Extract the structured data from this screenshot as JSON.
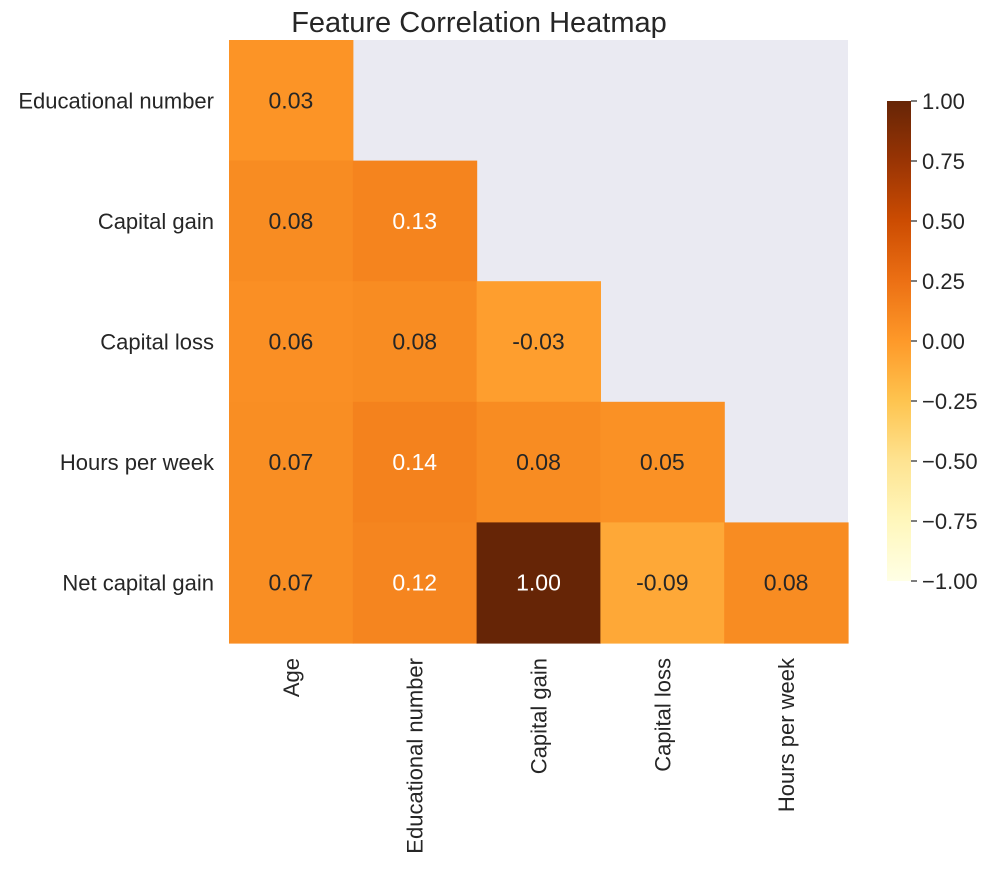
{
  "chart_data": {
    "type": "heatmap",
    "title": "Feature Correlation Heatmap",
    "rows": [
      "Educational number",
      "Capital gain",
      "Capital loss",
      "Hours per week",
      "Net capital gain"
    ],
    "columns": [
      "Age",
      "Educational number",
      "Capital gain",
      "Capital loss",
      "Hours per week"
    ],
    "values": [
      [
        0.03,
        null,
        null,
        null,
        null
      ],
      [
        0.08,
        0.13,
        null,
        null,
        null
      ],
      [
        0.06,
        0.08,
        -0.03,
        null,
        null
      ],
      [
        0.07,
        0.14,
        0.08,
        0.05,
        null
      ],
      [
        0.07,
        0.12,
        1.0,
        -0.09,
        0.08
      ]
    ],
    "value_labels": [
      [
        "0.03",
        "",
        "",
        "",
        ""
      ],
      [
        "0.08",
        "0.13",
        "",
        "",
        ""
      ],
      [
        "0.06",
        "0.08",
        "-0.03",
        "",
        ""
      ],
      [
        "0.07",
        "0.14",
        "0.08",
        "0.05",
        ""
      ],
      [
        "0.07",
        "0.12",
        "1.00",
        "-0.09",
        "0.08"
      ]
    ],
    "vmin": -1.0,
    "vmax": 1.0,
    "colormap": "YlOrBr",
    "mask": "upper-triangle",
    "colorbar": {
      "ticks": [
        1.0,
        0.75,
        0.5,
        0.25,
        0.0,
        -0.25,
        -0.5,
        -0.75,
        -1.0
      ],
      "tick_labels": [
        "1.00",
        "0.75",
        "0.50",
        "0.25",
        "0.00",
        "−0.25",
        "−0.50",
        "−0.75",
        "−1.00"
      ]
    },
    "colors": {
      "masked_background": "#eaeaf2",
      "text_dark": "#262626",
      "text_light": "#ffffff"
    }
  }
}
